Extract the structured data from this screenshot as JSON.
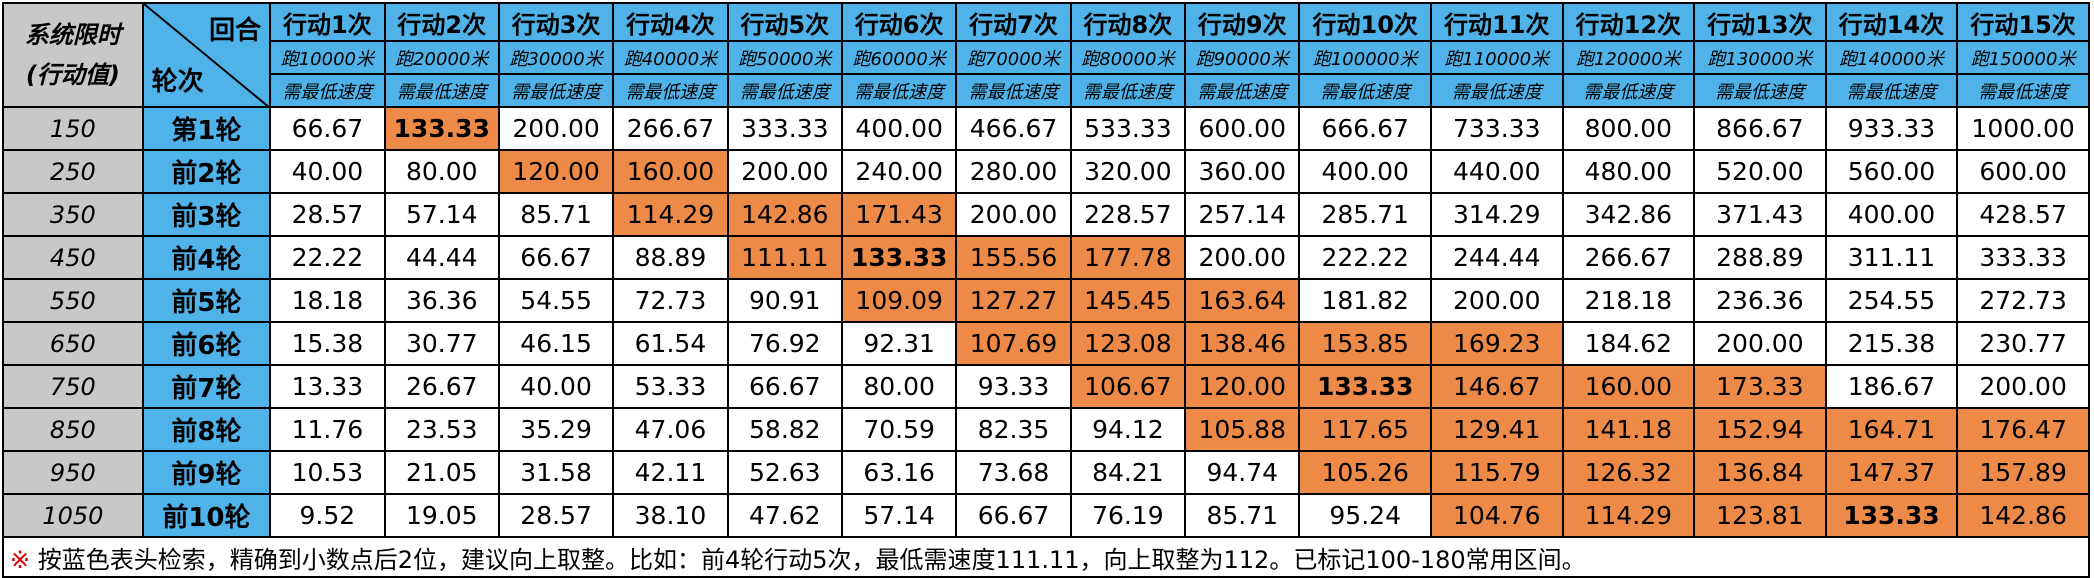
{
  "corner": {
    "left_line1": "系统限时",
    "left_line2": "(行动值)",
    "right_top": "回合",
    "right_bottom": "轮次"
  },
  "columns": [
    {
      "action": "行动1次",
      "distance": "跑10000米",
      "label": "需最低速度"
    },
    {
      "action": "行动2次",
      "distance": "跑20000米",
      "label": "需最低速度"
    },
    {
      "action": "行动3次",
      "distance": "跑30000米",
      "label": "需最低速度"
    },
    {
      "action": "行动4次",
      "distance": "跑40000米",
      "label": "需最低速度"
    },
    {
      "action": "行动5次",
      "distance": "跑50000米",
      "label": "需最低速度"
    },
    {
      "action": "行动6次",
      "distance": "跑60000米",
      "label": "需最低速度"
    },
    {
      "action": "行动7次",
      "distance": "跑70000米",
      "label": "需最低速度"
    },
    {
      "action": "行动8次",
      "distance": "跑80000米",
      "label": "需最低速度"
    },
    {
      "action": "行动9次",
      "distance": "跑90000米",
      "label": "需最低速度"
    },
    {
      "action": "行动10次",
      "distance": "跑100000米",
      "label": "需最低速度"
    },
    {
      "action": "行动11次",
      "distance": "跑110000米",
      "label": "需最低速度"
    },
    {
      "action": "行动12次",
      "distance": "跑120000米",
      "label": "需最低速度"
    },
    {
      "action": "行动13次",
      "distance": "跑130000米",
      "label": "需最低速度"
    },
    {
      "action": "行动14次",
      "distance": "跑140000米",
      "label": "需最低速度"
    },
    {
      "action": "行动15次",
      "distance": "跑150000米",
      "label": "需最低速度"
    }
  ],
  "rows": [
    {
      "action_value": "150",
      "round": "第1轮",
      "values": [
        "66.67",
        "133.33",
        "200.00",
        "266.67",
        "333.33",
        "400.00",
        "466.67",
        "533.33",
        "600.00",
        "666.67",
        "733.33",
        "800.00",
        "866.67",
        "933.33",
        "1000.00"
      ],
      "highlight": [
        2
      ],
      "bold": [
        2
      ]
    },
    {
      "action_value": "250",
      "round": "前2轮",
      "values": [
        "40.00",
        "80.00",
        "120.00",
        "160.00",
        "200.00",
        "240.00",
        "280.00",
        "320.00",
        "360.00",
        "400.00",
        "440.00",
        "480.00",
        "520.00",
        "560.00",
        "600.00"
      ],
      "highlight": [
        3,
        4
      ],
      "bold": []
    },
    {
      "action_value": "350",
      "round": "前3轮",
      "values": [
        "28.57",
        "57.14",
        "85.71",
        "114.29",
        "142.86",
        "171.43",
        "200.00",
        "228.57",
        "257.14",
        "285.71",
        "314.29",
        "342.86",
        "371.43",
        "400.00",
        "428.57"
      ],
      "highlight": [
        4,
        5,
        6
      ],
      "bold": []
    },
    {
      "action_value": "450",
      "round": "前4轮",
      "values": [
        "22.22",
        "44.44",
        "66.67",
        "88.89",
        "111.11",
        "133.33",
        "155.56",
        "177.78",
        "200.00",
        "222.22",
        "244.44",
        "266.67",
        "288.89",
        "311.11",
        "333.33"
      ],
      "highlight": [
        5,
        6,
        7,
        8
      ],
      "bold": [
        6
      ]
    },
    {
      "action_value": "550",
      "round": "前5轮",
      "values": [
        "18.18",
        "36.36",
        "54.55",
        "72.73",
        "90.91",
        "109.09",
        "127.27",
        "145.45",
        "163.64",
        "181.82",
        "200.00",
        "218.18",
        "236.36",
        "254.55",
        "272.73"
      ],
      "highlight": [
        6,
        7,
        8,
        9
      ],
      "bold": []
    },
    {
      "action_value": "650",
      "round": "前6轮",
      "values": [
        "15.38",
        "30.77",
        "46.15",
        "61.54",
        "76.92",
        "92.31",
        "107.69",
        "123.08",
        "138.46",
        "153.85",
        "169.23",
        "184.62",
        "200.00",
        "215.38",
        "230.77"
      ],
      "highlight": [
        7,
        8,
        9,
        10,
        11
      ],
      "bold": []
    },
    {
      "action_value": "750",
      "round": "前7轮",
      "values": [
        "13.33",
        "26.67",
        "40.00",
        "53.33",
        "66.67",
        "80.00",
        "93.33",
        "106.67",
        "120.00",
        "133.33",
        "146.67",
        "160.00",
        "173.33",
        "186.67",
        "200.00"
      ],
      "highlight": [
        8,
        9,
        10,
        11,
        12,
        13
      ],
      "bold": [
        10
      ]
    },
    {
      "action_value": "850",
      "round": "前8轮",
      "values": [
        "11.76",
        "23.53",
        "35.29",
        "47.06",
        "58.82",
        "70.59",
        "82.35",
        "94.12",
        "105.88",
        "117.65",
        "129.41",
        "141.18",
        "152.94",
        "164.71",
        "176.47"
      ],
      "highlight": [
        9,
        10,
        11,
        12,
        13,
        14,
        15
      ],
      "bold": []
    },
    {
      "action_value": "950",
      "round": "前9轮",
      "values": [
        "10.53",
        "21.05",
        "31.58",
        "42.11",
        "52.63",
        "63.16",
        "73.68",
        "84.21",
        "94.74",
        "105.26",
        "115.79",
        "126.32",
        "136.84",
        "147.37",
        "157.89"
      ],
      "highlight": [
        10,
        11,
        12,
        13,
        14,
        15
      ],
      "bold": []
    },
    {
      "action_value": "1050",
      "round": "前10轮",
      "values": [
        "9.52",
        "19.05",
        "28.57",
        "38.10",
        "47.62",
        "57.14",
        "66.67",
        "76.19",
        "85.71",
        "95.24",
        "104.76",
        "114.29",
        "123.81",
        "133.33",
        "142.86"
      ],
      "highlight": [
        11,
        12,
        13,
        14,
        15
      ],
      "bold": [
        14
      ]
    }
  ],
  "note": {
    "mark": "※",
    "text": " 按蓝色表头检索，精确到小数点后2位，建议向上取整。比如：前4轮行动5次，最低需速度111.11，向上取整为112。已标记100-180常用区间。"
  },
  "colors": {
    "header_blue": "#4fb3ea",
    "label_gray": "#c8c8c8",
    "highlight_orange": "#ee8a48",
    "mark_red": "#d40000"
  }
}
